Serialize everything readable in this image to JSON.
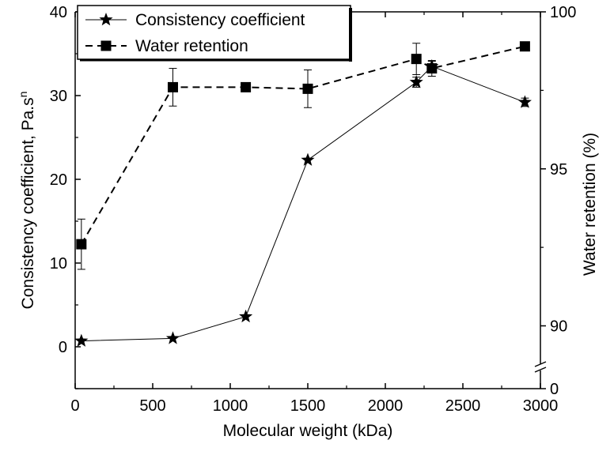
{
  "chart_data": {
    "type": "line",
    "xlabel": "Molecular weight (kDa)",
    "ylabel_left": "Consistency coefficient, Pa.s",
    "ylabel_left_superscript": "n",
    "ylabel_right": "Water retention (%)",
    "xlim": [
      0,
      3000
    ],
    "xticks": [
      "0",
      "500",
      "1000",
      "1500",
      "2000",
      "2500",
      "3000"
    ],
    "ylim_left": [
      -5,
      40
    ],
    "yticks_left": [
      "0",
      "10",
      "20",
      "30",
      "40"
    ],
    "ylim_right": [
      88,
      100
    ],
    "yticks_right": [
      "0",
      "90",
      "95",
      "100"
    ],
    "right_axis_break": true,
    "legend_position": "top-left",
    "series": [
      {
        "name": "Consistency coefficient",
        "axis": "left",
        "marker": "star",
        "line": "solid",
        "x": [
          40,
          630,
          1100,
          1500,
          2200,
          2300,
          2900
        ],
        "y": [
          0.7,
          1.0,
          3.6,
          22.3,
          31.6,
          33.5,
          29.2
        ],
        "err": [
          0,
          0,
          0,
          0,
          0.6,
          0.6,
          0.5
        ]
      },
      {
        "name": "Water retention",
        "axis": "right",
        "marker": "square",
        "line": "dashed",
        "x": [
          40,
          630,
          1100,
          1500,
          2200,
          2300,
          2900
        ],
        "y": [
          92.6,
          97.6,
          97.6,
          97.55,
          98.5,
          98.2,
          98.9
        ],
        "err": [
          0.8,
          0.6,
          0,
          0.6,
          0.5,
          0.25,
          0
        ]
      }
    ]
  }
}
